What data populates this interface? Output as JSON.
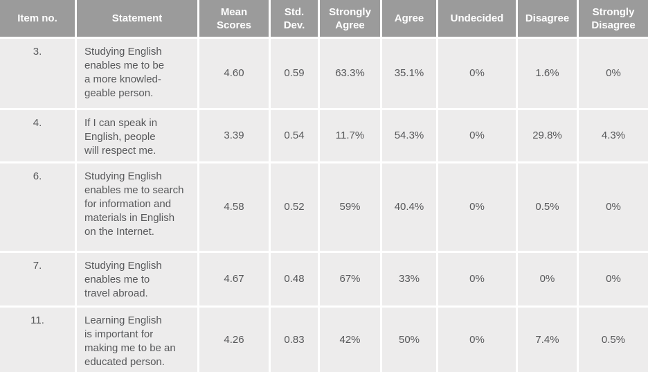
{
  "table": {
    "columns": [
      {
        "key": "item",
        "label": "Item no."
      },
      {
        "key": "statement",
        "label": "Statement"
      },
      {
        "key": "mean",
        "label": "Mean\nScores"
      },
      {
        "key": "std",
        "label": "Std.\nDev."
      },
      {
        "key": "strongly_agree",
        "label": "Strongly\nAgree"
      },
      {
        "key": "agree",
        "label": "Agree"
      },
      {
        "key": "undecided",
        "label": "Undecided"
      },
      {
        "key": "disagree",
        "label": "Disagree"
      },
      {
        "key": "strongly_disagree",
        "label": "Strongly\nDisagree"
      }
    ],
    "rows": [
      {
        "item": "3.",
        "statement": "Studying English\nenables me to be\na more knowled-\ngeable person.",
        "mean": "4.60",
        "std": "0.59",
        "strongly_agree": "63.3%",
        "agree": "35.1%",
        "undecided": "0%",
        "disagree": "1.6%",
        "strongly_disagree": "0%"
      },
      {
        "item": "4.",
        "statement": "If I can speak in\nEnglish, people\nwill respect me.",
        "mean": "3.39",
        "std": "0.54",
        "strongly_agree": "11.7%",
        "agree": "54.3%",
        "undecided": "0%",
        "disagree": "29.8%",
        "strongly_disagree": "4.3%"
      },
      {
        "item": "6.",
        "statement": "Studying English\nenables me to search\nfor information and\nmaterials in English\non the Internet.",
        "mean": "4.58",
        "std": "0.52",
        "strongly_agree": "59%",
        "agree": "40.4%",
        "undecided": "0%",
        "disagree": "0.5%",
        "strongly_disagree": "0%"
      },
      {
        "item": "7.",
        "statement": "Studying English\nenables me to\ntravel abroad.",
        "mean": "4.67",
        "std": "0.48",
        "strongly_agree": "67%",
        "agree": "33%",
        "undecided": "0%",
        "disagree": "0%",
        "strongly_disagree": "0%"
      },
      {
        "item": "11.",
        "statement": "Learning English\nis important for\nmaking me to be an\neducated person.",
        "mean": "4.26",
        "std": "0.83",
        "strongly_agree": "42%",
        "agree": "50%",
        "undecided": "0%",
        "disagree": "7.4%",
        "strongly_disagree": "0.5%"
      }
    ]
  },
  "colors": {
    "header_bg": "#9b9b9b",
    "header_text": "#ffffff",
    "cell_bg": "#edecec",
    "body_text": "#57585a",
    "gap": "#ffffff"
  }
}
